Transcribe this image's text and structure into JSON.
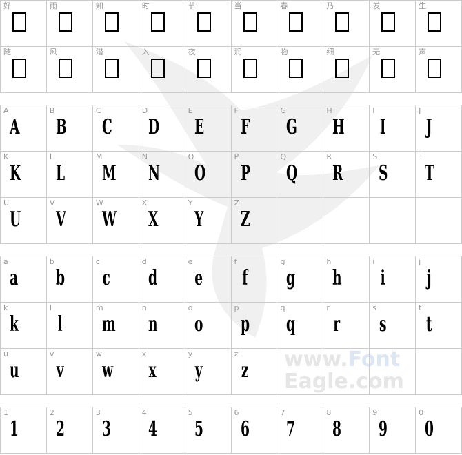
{
  "watermark": {
    "prefix": "www.",
    "brand": "Font",
    "suffix": "Eagle.com"
  },
  "sections": [
    {
      "id": "cjk",
      "tofu": true,
      "rows": [
        [
          "好",
          "雨",
          "知",
          "时",
          "节",
          "当",
          "春",
          "乃",
          "发",
          "生"
        ],
        [
          "随",
          "风",
          "潜",
          "入",
          "夜",
          "润",
          "物",
          "细",
          "无",
          "声"
        ]
      ]
    },
    {
      "id": "uppercase",
      "tofu": false,
      "rows": [
        [
          "A",
          "B",
          "C",
          "D",
          "E",
          "F",
          "G",
          "H",
          "I",
          "J"
        ],
        [
          "K",
          "L",
          "M",
          "N",
          "O",
          "P",
          "Q",
          "R",
          "S",
          "T"
        ],
        [
          "U",
          "V",
          "W",
          "X",
          "Y",
          "Z",
          "",
          "",
          "",
          ""
        ]
      ]
    },
    {
      "id": "lowercase",
      "tofu": false,
      "rows": [
        [
          "a",
          "b",
          "c",
          "d",
          "e",
          "f",
          "g",
          "h",
          "i",
          "j"
        ],
        [
          "k",
          "l",
          "m",
          "n",
          "o",
          "p",
          "q",
          "r",
          "s",
          "t"
        ],
        [
          "u",
          "v",
          "w",
          "x",
          "y",
          "z",
          "",
          "",
          "",
          ""
        ]
      ]
    },
    {
      "id": "digits",
      "tofu": false,
      "rows": [
        [
          "1",
          "2",
          "3",
          "4",
          "5",
          "6",
          "7",
          "8",
          "9",
          "0"
        ]
      ]
    }
  ]
}
